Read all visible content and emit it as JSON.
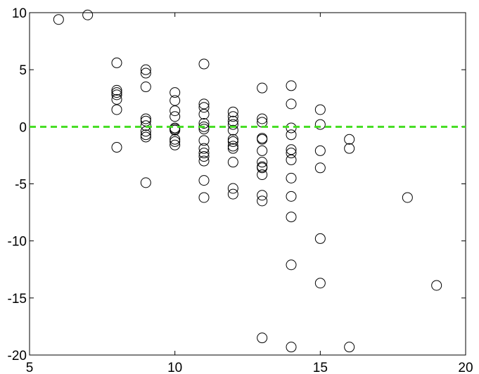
{
  "chart_data": {
    "type": "scatter",
    "x": [
      6,
      7,
      8,
      8,
      8,
      8,
      8,
      8,
      8,
      9,
      9,
      9,
      9,
      9,
      9,
      9,
      9,
      9,
      9,
      10,
      10,
      10,
      10,
      10,
      10,
      10,
      10,
      10,
      10,
      11,
      11,
      11,
      11,
      11,
      11,
      11,
      11,
      11,
      11,
      11,
      11,
      11,
      11,
      12,
      12,
      12,
      12,
      12,
      12,
      12,
      12,
      12,
      12,
      12,
      12,
      13,
      13,
      13,
      13,
      13,
      13,
      13,
      13,
      13,
      13,
      13,
      13,
      13,
      14,
      14,
      14,
      14,
      14,
      14,
      14,
      14,
      14,
      14,
      14,
      14,
      15,
      15,
      15,
      15,
      15,
      15,
      16,
      16,
      16,
      18,
      19
    ],
    "values": [
      9.4,
      9.8,
      5.6,
      3.2,
      3.0,
      2.8,
      2.4,
      1.5,
      -1.8,
      5.0,
      4.7,
      3.5,
      0.7,
      0.5,
      0.1,
      -0.4,
      -0.7,
      -0.9,
      -4.9,
      3.0,
      2.3,
      1.4,
      0.9,
      -0.1,
      -0.3,
      -0.2,
      -1.1,
      -1.6,
      -1.3,
      5.5,
      2.0,
      1.7,
      1.1,
      0.3,
      0,
      -0.2,
      -1.2,
      -1.9,
      -2.3,
      -2.6,
      -3.0,
      -4.7,
      -6.2,
      1.3,
      0.9,
      0.5,
      0.2,
      -0.3,
      -1.1,
      -1.3,
      -1.7,
      -1.9,
      -3.1,
      -5.4,
      -5.9,
      3.4,
      0.7,
      0.4,
      -1.0,
      -1.1,
      -2.1,
      -3.1,
      -3.5,
      -3.6,
      -4.2,
      -6.0,
      -6.5,
      -18.5,
      3.6,
      2.0,
      -0.1,
      -0.7,
      -2.0,
      -2.3,
      -2.9,
      -4.5,
      -6.1,
      -7.9,
      -12.1,
      -19.3,
      1.5,
      0.2,
      -2.1,
      -3.6,
      -9.8,
      -13.7,
      -1.1,
      -1.9,
      -19.3,
      -6.2,
      -13.9
    ],
    "color": "#000000",
    "xlim": [
      5,
      20
    ],
    "xticks": [
      5,
      10,
      15,
      20
    ],
    "ylim": [
      -20,
      10
    ],
    "yticks": [
      -20,
      -15,
      -10,
      -5,
      0,
      5,
      10
    ],
    "reference_line": {
      "value": 0,
      "color": "#44dd22"
    }
  }
}
